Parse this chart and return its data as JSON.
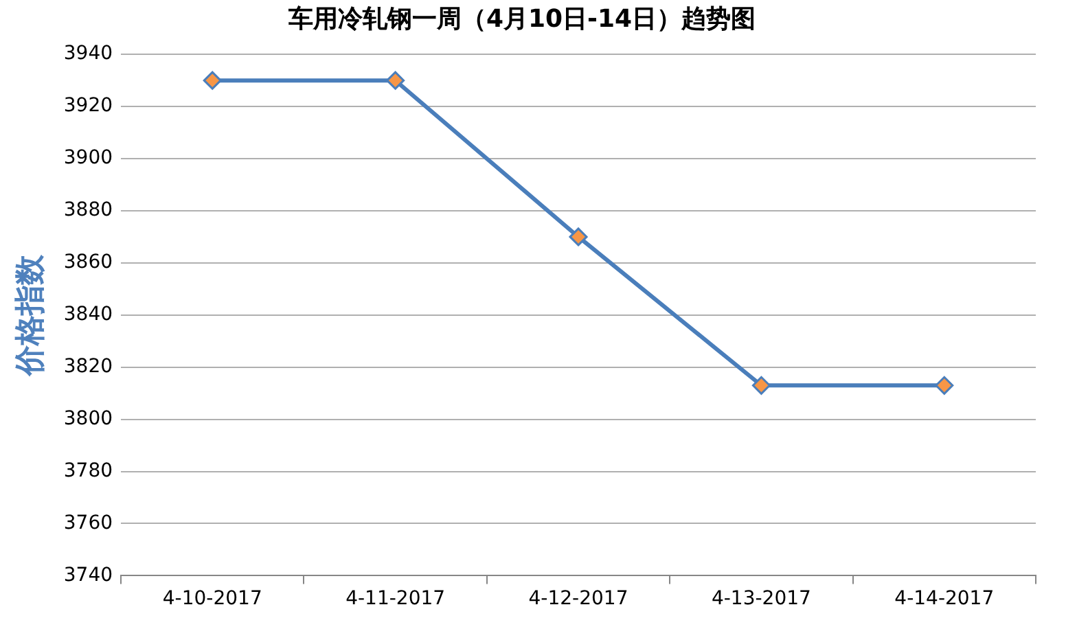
{
  "chart_data": {
    "type": "line",
    "title": "车用冷轧钢一周（4月10日-14日）趋势图",
    "ylabel": "价格指数",
    "categories": [
      "4-10-2017",
      "4-11-2017",
      "4-12-2017",
      "4-13-2017",
      "4-14-2017"
    ],
    "series": [
      {
        "color": "#4a7ebb",
        "values": [
          3930,
          3930,
          3870,
          3813,
          3813
        ]
      }
    ],
    "ylim": [
      3740,
      3940
    ],
    "yticks": [
      3740,
      3760,
      3780,
      3800,
      3820,
      3840,
      3860,
      3880,
      3900,
      3920,
      3940
    ],
    "grid": "y",
    "legend": false,
    "marker": "diamond",
    "line_style": "solid"
  }
}
